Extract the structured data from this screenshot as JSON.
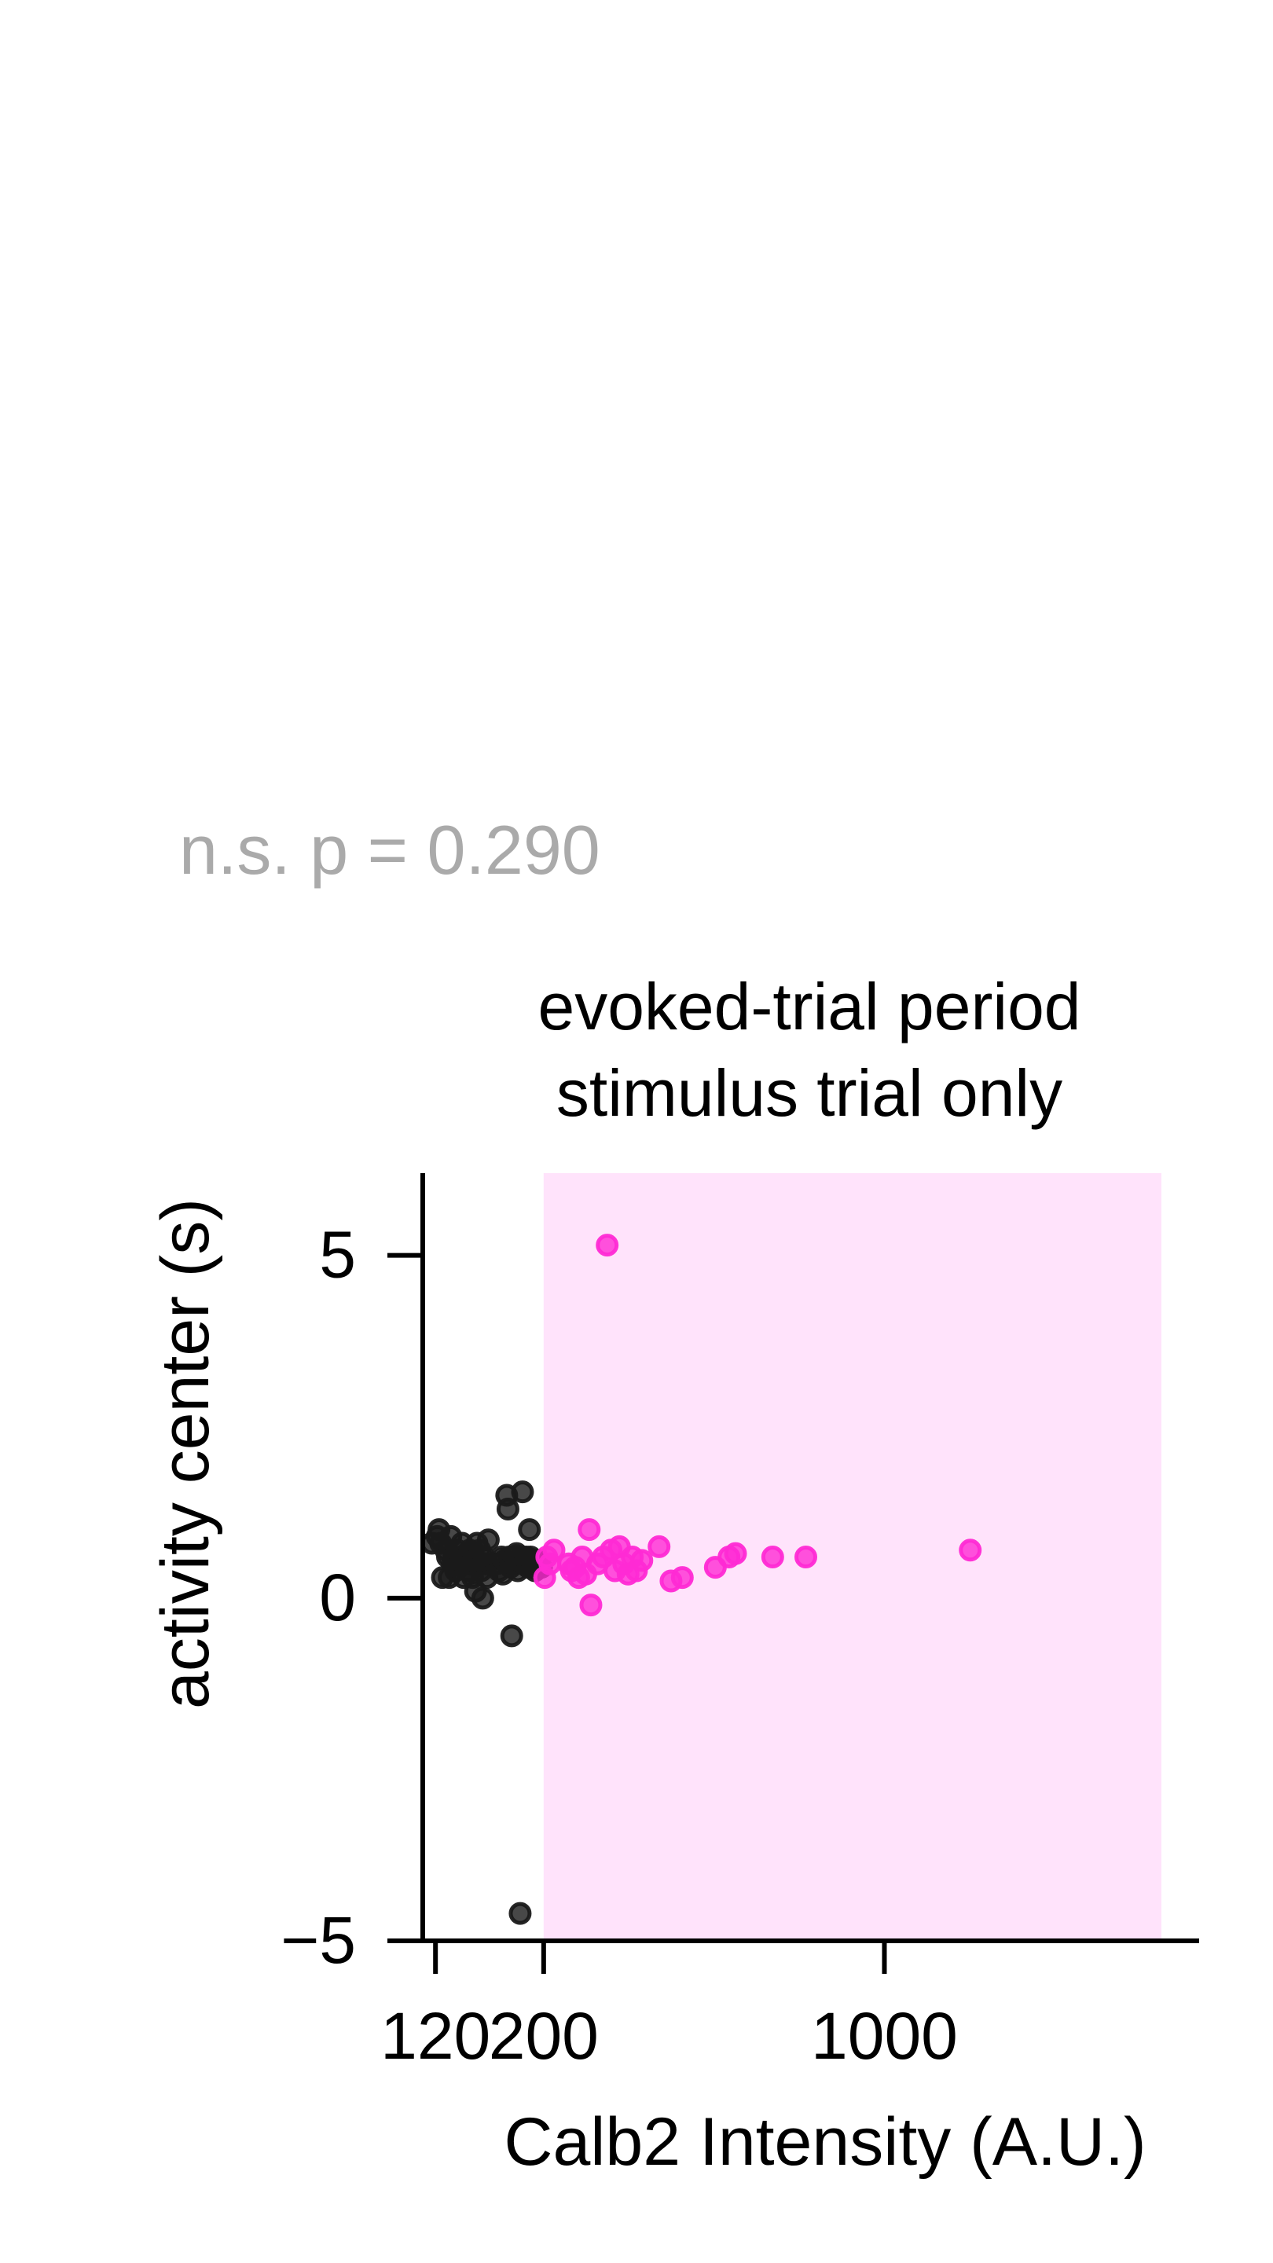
{
  "annotation": "n.s. p = 0.290",
  "chart_data": {
    "type": "scatter",
    "title": [
      "evoked-trial period",
      "stimulus trial only"
    ],
    "xlabel": "Calb2 Intensity (A.U.)",
    "ylabel": "activity center (s)",
    "x_scale": "log",
    "xlim": [
      113,
      3700
    ],
    "ylim": [
      -5,
      6.2
    ],
    "xticks": [
      {
        "value": 120,
        "label": "120"
      },
      {
        "value": 200,
        "label": "200"
      },
      {
        "value": 1000,
        "label": "1000"
      }
    ],
    "yticks": [
      {
        "value": 5,
        "label": "5"
      },
      {
        "value": 0,
        "label": "0"
      },
      {
        "value": -5,
        "label": "−5"
      }
    ],
    "shaded_region": {
      "x": [
        200,
        3700
      ],
      "color": "#ffe3fb"
    },
    "series": [
      {
        "color": "#1a1a1a",
        "points": [
          [
            118,
            0.8
          ],
          [
            121,
            0.9
          ],
          [
            122,
            1.0
          ],
          [
            123,
            0.8
          ],
          [
            124,
            0.3
          ],
          [
            126,
            0.7
          ],
          [
            127,
            0.6
          ],
          [
            128,
            0.3
          ],
          [
            129,
            0.9
          ],
          [
            130,
            0.5
          ],
          [
            131,
            0.6
          ],
          [
            132,
            0.4
          ],
          [
            133,
            0.7
          ],
          [
            134,
            0.5
          ],
          [
            135,
            0.6
          ],
          [
            136,
            0.8
          ],
          [
            137,
            0.3
          ],
          [
            138,
            0.5
          ],
          [
            139,
            0.6
          ],
          [
            140,
            0.4
          ],
          [
            141,
            0.7
          ],
          [
            142,
            0.5
          ],
          [
            143,
            0.3
          ],
          [
            144,
            0.6
          ],
          [
            145,
            0.1
          ],
          [
            146,
            0.8
          ],
          [
            147,
            0.5
          ],
          [
            148,
            0.7
          ],
          [
            149,
            0.4
          ],
          [
            150,
            0.0
          ],
          [
            151,
            0.6
          ],
          [
            152,
            0.5
          ],
          [
            153,
            0.3
          ],
          [
            154,
            0.85
          ],
          [
            160,
            0.5
          ],
          [
            162,
            0.4
          ],
          [
            164,
            0.6
          ],
          [
            165,
            0.35
          ],
          [
            166,
            0.55
          ],
          [
            168,
            1.5
          ],
          [
            169,
            1.3
          ],
          [
            170,
            0.6
          ],
          [
            171,
            0.45
          ],
          [
            172,
            -0.55
          ],
          [
            173,
            0.5
          ],
          [
            174,
            0.6
          ],
          [
            175,
            0.5
          ],
          [
            176,
            0.65
          ],
          [
            177,
            0.4
          ],
          [
            178,
            0.55
          ],
          [
            179,
            -4.6
          ],
          [
            180,
            0.6
          ],
          [
            181,
            1.55
          ],
          [
            182,
            0.5
          ],
          [
            184,
            0.6
          ],
          [
            186,
            0.45
          ],
          [
            187,
            1.0
          ],
          [
            188,
            0.6
          ],
          [
            190,
            0.5
          ],
          [
            192,
            0.4
          ],
          [
            194,
            0.55
          ],
          [
            196,
            0.5
          ],
          [
            198,
            0.45
          ]
        ]
      },
      {
        "color": "#ff2ad4",
        "points": [
          [
            201,
            0.3
          ],
          [
            203,
            0.6
          ],
          [
            206,
            0.5
          ],
          [
            210,
            0.7
          ],
          [
            225,
            0.5
          ],
          [
            228,
            0.4
          ],
          [
            232,
            0.45
          ],
          [
            236,
            0.3
          ],
          [
            240,
            0.6
          ],
          [
            244,
            0.35
          ],
          [
            248,
            1.0
          ],
          [
            250,
            -0.1
          ],
          [
            258,
            0.5
          ],
          [
            265,
            0.6
          ],
          [
            270,
            5.15
          ],
          [
            275,
            0.7
          ],
          [
            280,
            0.4
          ],
          [
            286,
            0.75
          ],
          [
            292,
            0.5
          ],
          [
            298,
            0.35
          ],
          [
            304,
            0.6
          ],
          [
            310,
            0.4
          ],
          [
            318,
            0.55
          ],
          [
            345,
            0.75
          ],
          [
            365,
            0.25
          ],
          [
            385,
            0.3
          ],
          [
            450,
            0.45
          ],
          [
            480,
            0.6
          ],
          [
            495,
            0.65
          ],
          [
            590,
            0.6
          ],
          [
            690,
            0.6
          ],
          [
            1500,
            0.7
          ]
        ]
      }
    ]
  }
}
